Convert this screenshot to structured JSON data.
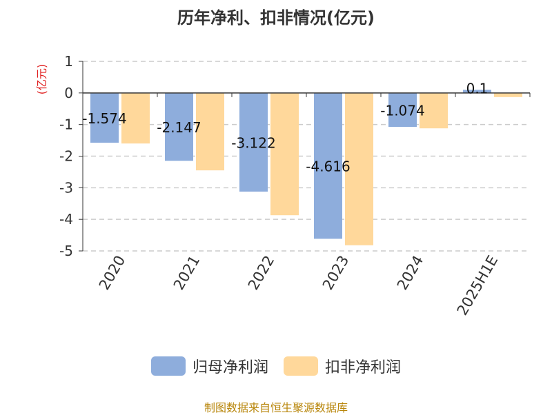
{
  "chart_data": {
    "type": "bar",
    "title": "历年净利、扣非情况(亿元)",
    "ylabel": "(亿元)",
    "categories": [
      "2020",
      "2021",
      "2022",
      "2023",
      "2024",
      "2025H1E"
    ],
    "series": [
      {
        "name": "归母净利润",
        "color": "#8eaddc",
        "values": [
          -1.574,
          -2.147,
          -3.122,
          -4.616,
          -1.074,
          0.1
        ],
        "labels": [
          "-1.574",
          "-2.147",
          "-3.122",
          "-4.616",
          "-1.074",
          "0.1"
        ]
      },
      {
        "name": "扣非净利润",
        "color": "#ffd89b",
        "values": [
          -1.6,
          -2.45,
          -3.87,
          -4.82,
          -1.12,
          -0.13
        ]
      }
    ],
    "ylim": [
      -5,
      1
    ],
    "yticks": [
      1,
      0,
      -1,
      -2,
      -3,
      -4,
      -5
    ],
    "grid": true,
    "legend_position": "bottom"
  },
  "footer": {
    "source": "制图数据来自恒生聚源数据库"
  },
  "colors": {
    "title": "#333333",
    "ylabel": "#e02020",
    "source": "#b8860b",
    "grid": "#cccccc"
  }
}
